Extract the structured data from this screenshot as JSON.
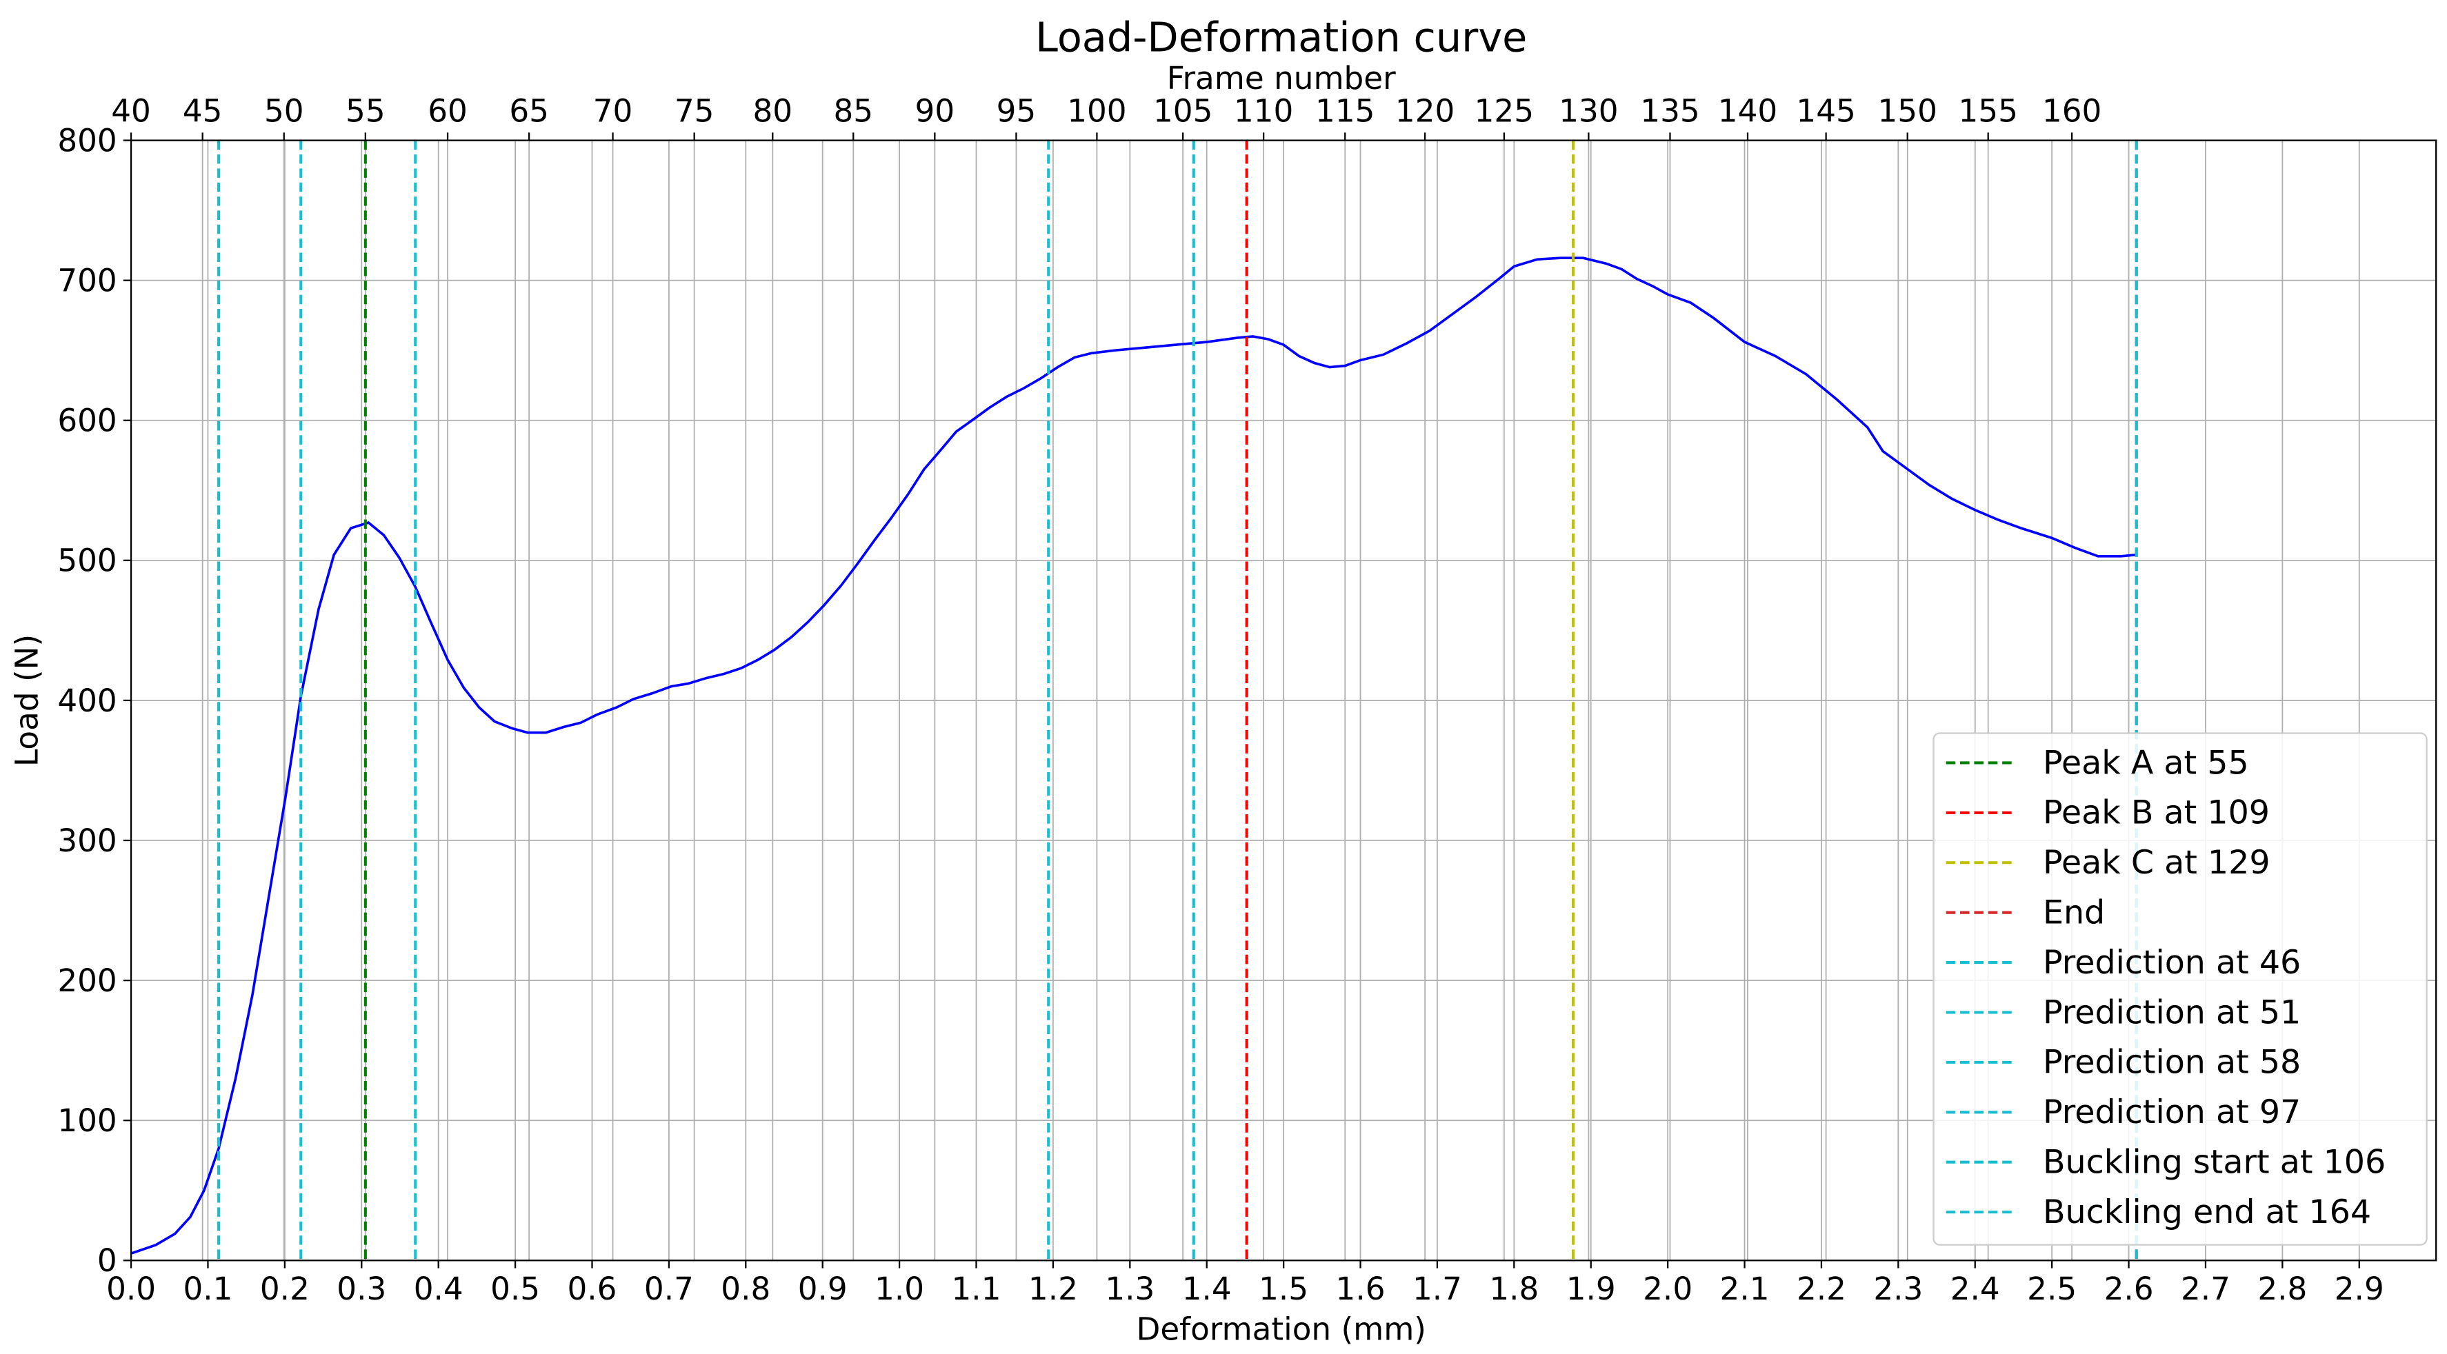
{
  "chart_data": {
    "type": "line",
    "title": "Load-Deformation curve",
    "xlabel": "Deformation (mm)",
    "ylabel": "Load (N)",
    "x2label": "Frame number",
    "xlim": [
      0,
      3.0
    ],
    "ylim": [
      0,
      800
    ],
    "xticks": [
      {
        "value": 0,
        "label": "0.0"
      },
      0.1,
      0.2,
      0.3,
      0.4,
      0.5,
      0.6,
      0.7,
      0.8,
      0.9,
      {
        "value": 1,
        "label": "1.0"
      },
      1.1,
      1.2,
      1.3,
      1.4,
      1.5,
      1.6,
      1.7,
      1.8,
      1.9,
      {
        "value": 2,
        "label": "2.0"
      },
      2.1,
      2.2,
      2.3,
      2.4,
      2.5,
      2.6,
      2.7,
      2.8,
      2.9
    ],
    "yticks": [
      0,
      100,
      200,
      300,
      400,
      500,
      600,
      700,
      800
    ],
    "x2ticks": [
      {
        "value": 0.0,
        "label": "40"
      },
      {
        "value": 0.093,
        "label": "45"
      },
      {
        "value": 0.199,
        "label": "50"
      },
      {
        "value": 0.305,
        "label": "55"
      },
      {
        "value": 0.412,
        "label": "60"
      },
      {
        "value": 0.518,
        "label": "65"
      },
      {
        "value": 0.627,
        "label": "70"
      },
      {
        "value": 0.733,
        "label": "75"
      },
      {
        "value": 0.835,
        "label": "80"
      },
      {
        "value": 0.94,
        "label": "85"
      },
      {
        "value": 1.046,
        "label": "90"
      },
      {
        "value": 1.152,
        "label": "95"
      },
      {
        "value": 1.257,
        "label": "100"
      },
      {
        "value": 1.369,
        "label": "105"
      },
      {
        "value": 1.474,
        "label": "110"
      },
      {
        "value": 1.58,
        "label": "115"
      },
      {
        "value": 1.684,
        "label": "120"
      },
      {
        "value": 1.787,
        "label": "125"
      },
      {
        "value": 1.897,
        "label": "130"
      },
      {
        "value": 2.003,
        "label": "135"
      },
      {
        "value": 2.104,
        "label": "140"
      },
      {
        "value": 2.206,
        "label": "145"
      },
      {
        "value": 2.312,
        "label": "150"
      },
      {
        "value": 2.417,
        "label": "155"
      },
      {
        "value": 2.526,
        "label": "160"
      }
    ],
    "grid": true,
    "legend": "lower right",
    "series": [
      {
        "color": "#0000ff",
        "x": [
          0.0,
          0.032,
          0.057,
          0.077,
          0.095,
          0.114,
          0.136,
          0.158,
          0.179,
          0.201,
          0.221,
          0.244,
          0.264,
          0.286,
          0.309,
          0.329,
          0.349,
          0.37,
          0.39,
          0.412,
          0.433,
          0.453,
          0.473,
          0.496,
          0.516,
          0.54,
          0.563,
          0.585,
          0.607,
          0.632,
          0.654,
          0.678,
          0.703,
          0.725,
          0.749,
          0.772,
          0.794,
          0.816,
          0.837,
          0.859,
          0.881,
          0.902,
          0.924,
          0.946,
          0.967,
          0.989,
          1.011,
          1.032,
          1.054,
          1.074,
          1.097,
          1.117,
          1.14,
          1.162,
          1.184,
          1.206,
          1.228,
          1.25,
          1.28,
          1.32,
          1.36,
          1.4,
          1.44,
          1.46,
          1.48,
          1.5,
          1.52,
          1.54,
          1.56,
          1.58,
          1.6,
          1.63,
          1.66,
          1.69,
          1.72,
          1.75,
          1.78,
          1.8,
          1.83,
          1.86,
          1.89,
          1.92,
          1.94,
          1.96,
          1.98,
          2.0,
          2.03,
          2.06,
          2.1,
          2.14,
          2.18,
          2.22,
          2.26,
          2.28,
          2.31,
          2.34,
          2.37,
          2.4,
          2.43,
          2.46,
          2.5,
          2.53,
          2.56,
          2.59,
          2.61
        ],
        "values": [
          5,
          11,
          19,
          31,
          50,
          80,
          130,
          190,
          259,
          331,
          403,
          465,
          504,
          523,
          527,
          518,
          502,
          481,
          456,
          429,
          409,
          395,
          385,
          380,
          377,
          377,
          381,
          384,
          390,
          395,
          401,
          405,
          410,
          412,
          416,
          419,
          423,
          429,
          436,
          445,
          456,
          468,
          482,
          498,
          514,
          530,
          547,
          565,
          579,
          592,
          601,
          609,
          617,
          623,
          630,
          638,
          645,
          648,
          650,
          652,
          654,
          656,
          659,
          660,
          658,
          654,
          646,
          641,
          638,
          639,
          643,
          647,
          655,
          664,
          676,
          688,
          701,
          710,
          715,
          716,
          716,
          712,
          708,
          701,
          696,
          690,
          684,
          673,
          656,
          646,
          633,
          615,
          595,
          578,
          566,
          554,
          544,
          536,
          529,
          523,
          516,
          509,
          503,
          503,
          504
        ]
      }
    ],
    "vlines": [
      {
        "name": "Peak A at 55",
        "color": "#008000",
        "x": 0.305
      },
      {
        "name": "Peak B at 109",
        "color": "#ff0000",
        "x": 1.452
      },
      {
        "name": "Peak C at 129",
        "color": "#bfbf00",
        "x": 1.877
      },
      {
        "name": "End",
        "color": "#d62728",
        "x": 2.61
      },
      {
        "name": "Prediction at 46",
        "color": "#17becf",
        "x": 0.114
      },
      {
        "name": "Prediction at 51",
        "color": "#17becf",
        "x": 0.221
      },
      {
        "name": "Prediction at 58",
        "color": "#17becf",
        "x": 0.37
      },
      {
        "name": "Prediction at 97",
        "color": "#17becf",
        "x": 1.194
      },
      {
        "name": "Buckling start at 106",
        "color": "#17becf",
        "x": 1.383
      },
      {
        "name": "Buckling end at 164",
        "color": "#17becf",
        "x": 2.61
      }
    ]
  }
}
